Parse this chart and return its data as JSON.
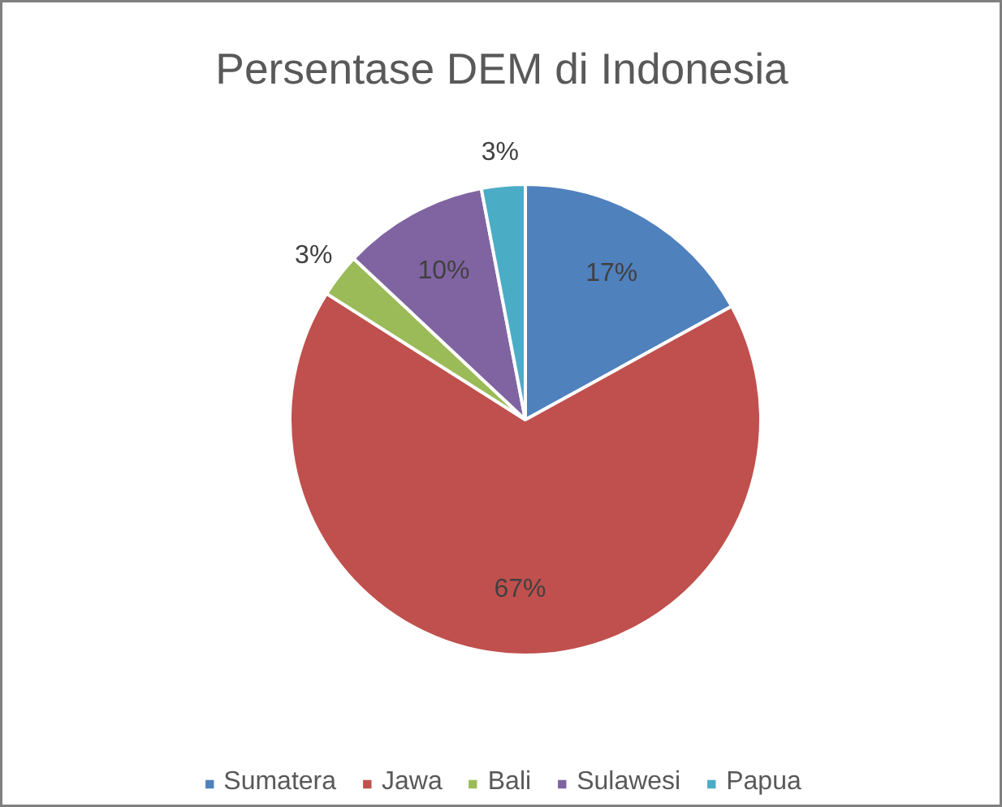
{
  "chart_data": {
    "type": "pie",
    "title": "Persentase DEM di Indonesia",
    "categories": [
      "Sumatera",
      "Jawa",
      "Bali",
      "Sulawesi",
      "Papua"
    ],
    "values": [
      17,
      67,
      3,
      10,
      3
    ],
    "colors": [
      "#4f81bd",
      "#c0504d",
      "#9bbb59",
      "#8064a2",
      "#4bacc6"
    ],
    "value_labels": [
      "17%",
      "67%",
      "3%",
      "10%",
      "3%"
    ],
    "legend": "bottom"
  }
}
